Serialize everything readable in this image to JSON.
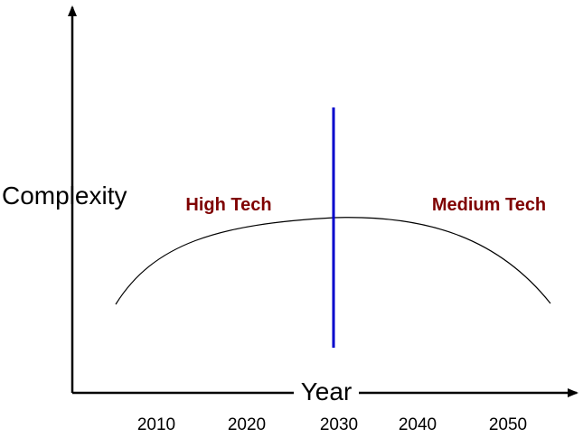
{
  "y_axis": {
    "label": "Complexity"
  },
  "x_axis": {
    "label": "Year",
    "ticks": [
      "2010",
      "2020",
      "2030",
      "2040",
      "2050"
    ]
  },
  "regions": [
    {
      "label": "High Tech"
    },
    {
      "label": "Medium Tech"
    }
  ],
  "colors": {
    "axes": "#000000",
    "curve": "#000000",
    "divider": "#0000cc",
    "region_label": "#7f0000"
  }
}
